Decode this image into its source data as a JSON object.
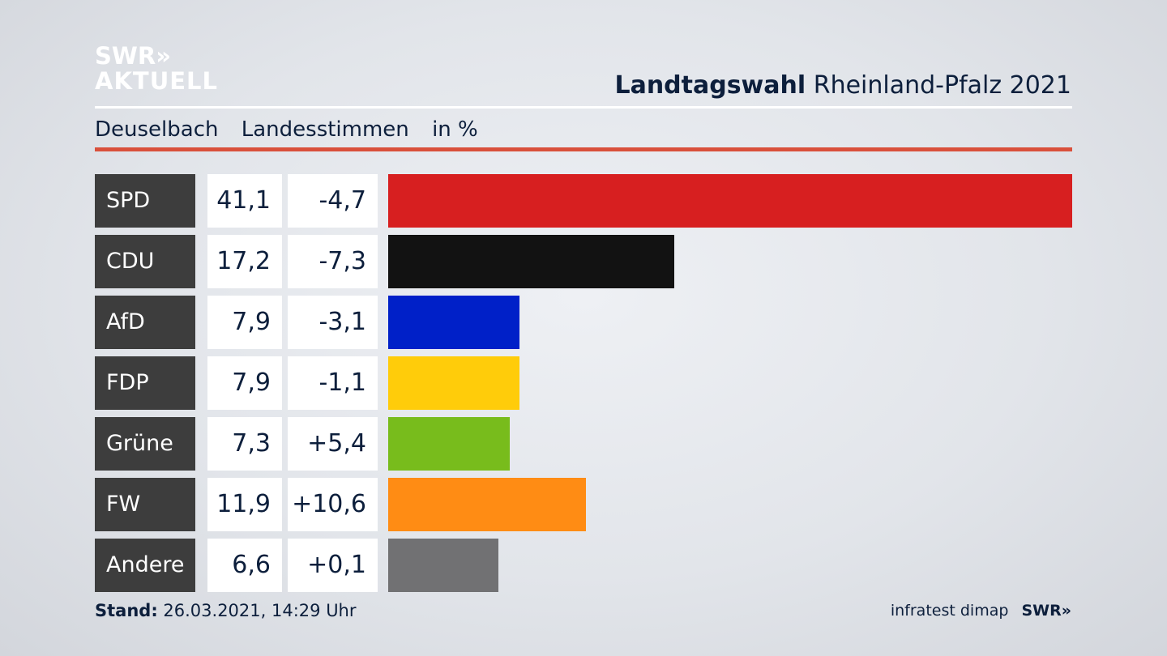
{
  "logo": {
    "line1": "SWR»",
    "line2": "AKTUELL"
  },
  "header": {
    "title_bold": "Landtagswahl",
    "title_rest": "Rheinland-Pfalz 2021"
  },
  "subheader": {
    "place": "Deuselbach",
    "type": "Landesstimmen",
    "unit": "in %"
  },
  "footer": {
    "stand_label": "Stand:",
    "stand_value": "26.03.2021, 14:29 Uhr",
    "source": "infratest dimap",
    "brand": "SWR»"
  },
  "chart_data": {
    "type": "bar",
    "orientation": "horizontal",
    "categories": [
      "SPD",
      "CDU",
      "AfD",
      "FDP",
      "Grüne",
      "FW",
      "Andere"
    ],
    "values": [
      41.1,
      17.2,
      7.9,
      7.9,
      7.3,
      11.9,
      6.6
    ],
    "value_labels": [
      "41,1",
      "17,2",
      "7,9",
      "7,9",
      "7,3",
      "11,9",
      "6,6"
    ],
    "diff_labels": [
      "-4,7",
      "-7,3",
      "-3,1",
      "-1,1",
      "+5,4",
      "+10,6",
      "+0,1"
    ],
    "colors": [
      "#d71f20",
      "#121212",
      "#0020c8",
      "#ffcc0a",
      "#78bc1c",
      "#ff8c14",
      "#717173"
    ],
    "xlim": [
      0,
      41.1
    ]
  }
}
